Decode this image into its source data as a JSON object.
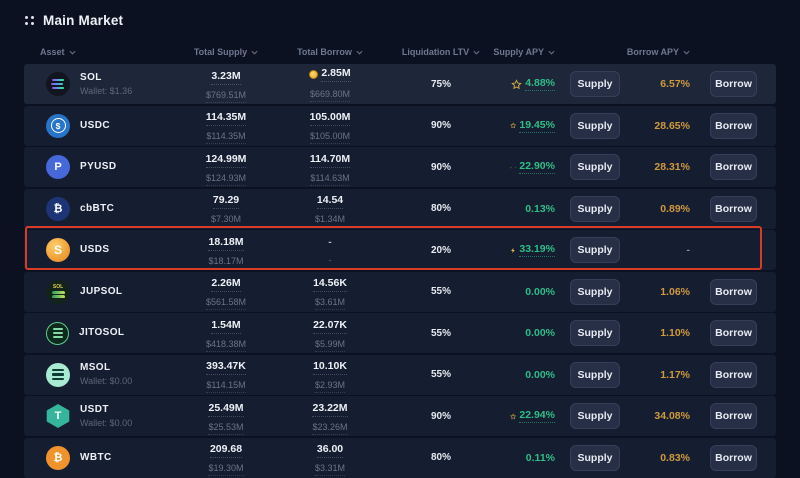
{
  "header": {
    "title": "Main Market"
  },
  "table": {
    "columns": [
      "Asset",
      "Total Supply",
      "Total Borrow",
      "Liquidation LTV",
      "Supply APY",
      "Borrow APY"
    ],
    "actions": {
      "supply": "Supply",
      "borrow": "Borrow"
    },
    "rows": [
      {
        "asset": "SOL",
        "icon": "sol",
        "wallet": "Wallet: $1.36",
        "total_supply": "3.23M",
        "total_supply_usd": "$769.51M",
        "total_borrow": "2.85M",
        "total_borrow_usd": "$669.80M",
        "borrow_coin_badge": true,
        "liquidation_ltv": "75%",
        "supply_apy": "4.88%",
        "supply_apy_star": true,
        "supply_apy_bolt": false,
        "supply_apy_underline": true,
        "borrow_apy": "6.57%",
        "can_borrow": true,
        "highlighted": true
      },
      {
        "asset": "USDC",
        "icon": "usdc",
        "wallet": null,
        "total_supply": "114.35M",
        "total_supply_usd": "$114.35M",
        "total_borrow": "105.00M",
        "total_borrow_usd": "$105.00M",
        "borrow_coin_badge": false,
        "liquidation_ltv": "90%",
        "supply_apy": "19.45%",
        "supply_apy_star": true,
        "supply_apy_bolt": false,
        "supply_apy_underline": true,
        "borrow_apy": "28.65%",
        "can_borrow": true,
        "highlighted": false
      },
      {
        "asset": "PYUSD",
        "icon": "pyusd",
        "wallet": null,
        "total_supply": "124.99M",
        "total_supply_usd": "$124.93M",
        "total_borrow": "114.70M",
        "total_borrow_usd": "$114.63M",
        "borrow_coin_badge": false,
        "liquidation_ltv": "90%",
        "supply_apy": "22.90%",
        "supply_apy_star": true,
        "supply_apy_bolt": true,
        "supply_apy_underline": true,
        "borrow_apy": "28.31%",
        "can_borrow": true,
        "highlighted": false
      },
      {
        "asset": "cbBTC",
        "icon": "cbbtc",
        "wallet": null,
        "total_supply": "79.29",
        "total_supply_usd": "$7.30M",
        "total_borrow": "14.54",
        "total_borrow_usd": "$1.34M",
        "borrow_coin_badge": false,
        "liquidation_ltv": "80%",
        "supply_apy": "0.13%",
        "supply_apy_star": false,
        "supply_apy_bolt": false,
        "supply_apy_underline": false,
        "borrow_apy": "0.89%",
        "can_borrow": true,
        "highlighted": false
      },
      {
        "asset": "USDS",
        "icon": "usds",
        "wallet": null,
        "total_supply": "18.18M",
        "total_supply_usd": "$18.17M",
        "total_borrow": "-",
        "total_borrow_usd": "-",
        "borrow_coin_badge": false,
        "liquidation_ltv": "20%",
        "supply_apy": "33.19%",
        "supply_apy_star": false,
        "supply_apy_bolt": true,
        "supply_apy_underline": true,
        "borrow_apy": "-",
        "can_borrow": false,
        "highlighted": false
      },
      {
        "asset": "JUPSOL",
        "icon": "jupsol",
        "wallet": null,
        "total_supply": "2.26M",
        "total_supply_usd": "$561.58M",
        "total_borrow": "14.56K",
        "total_borrow_usd": "$3.61M",
        "borrow_coin_badge": false,
        "liquidation_ltv": "55%",
        "supply_apy": "0.00%",
        "supply_apy_star": false,
        "supply_apy_bolt": false,
        "supply_apy_underline": false,
        "borrow_apy": "1.06%",
        "can_borrow": true,
        "highlighted": false
      },
      {
        "asset": "JITOSOL",
        "icon": "jitosol",
        "wallet": null,
        "total_supply": "1.54M",
        "total_supply_usd": "$418.38M",
        "total_borrow": "22.07K",
        "total_borrow_usd": "$5.99M",
        "borrow_coin_badge": false,
        "liquidation_ltv": "55%",
        "supply_apy": "0.00%",
        "supply_apy_star": false,
        "supply_apy_bolt": false,
        "supply_apy_underline": false,
        "borrow_apy": "1.10%",
        "can_borrow": true,
        "highlighted": false
      },
      {
        "asset": "MSOL",
        "icon": "msol",
        "wallet": "Wallet: $0.00",
        "total_supply": "393.47K",
        "total_supply_usd": "$114.15M",
        "total_borrow": "10.10K",
        "total_borrow_usd": "$2.93M",
        "borrow_coin_badge": false,
        "liquidation_ltv": "55%",
        "supply_apy": "0.00%",
        "supply_apy_star": false,
        "supply_apy_bolt": false,
        "supply_apy_underline": false,
        "borrow_apy": "1.17%",
        "can_borrow": true,
        "highlighted": false
      },
      {
        "asset": "USDT",
        "icon": "usdt",
        "wallet": "Wallet: $0.00",
        "total_supply": "25.49M",
        "total_supply_usd": "$25.53M",
        "total_borrow": "23.22M",
        "total_borrow_usd": "$23.26M",
        "borrow_coin_badge": false,
        "liquidation_ltv": "90%",
        "supply_apy": "22.94%",
        "supply_apy_star": true,
        "supply_apy_bolt": false,
        "supply_apy_underline": true,
        "borrow_apy": "34.08%",
        "can_borrow": true,
        "highlighted": false
      },
      {
        "asset": "WBTC",
        "icon": "wbtc",
        "wallet": null,
        "total_supply": "209.68",
        "total_supply_usd": "$19.30M",
        "total_borrow": "36.00",
        "total_borrow_usd": "$3.31M",
        "borrow_coin_badge": false,
        "liquidation_ltv": "80%",
        "supply_apy": "0.11%",
        "supply_apy_star": false,
        "supply_apy_bolt": false,
        "supply_apy_underline": false,
        "borrow_apy": "0.83%",
        "can_borrow": true,
        "highlighted": false
      }
    ]
  },
  "annotation": {
    "shape": "red-box",
    "marked_row": "USDS",
    "color": "#d83b26"
  },
  "colors": {
    "positive_apy": "#2fbd86",
    "borrow_apy": "#d09a3c",
    "star": "#c9a53f",
    "bolt": "#f2b63c",
    "annotation_red": "#d83b26"
  }
}
